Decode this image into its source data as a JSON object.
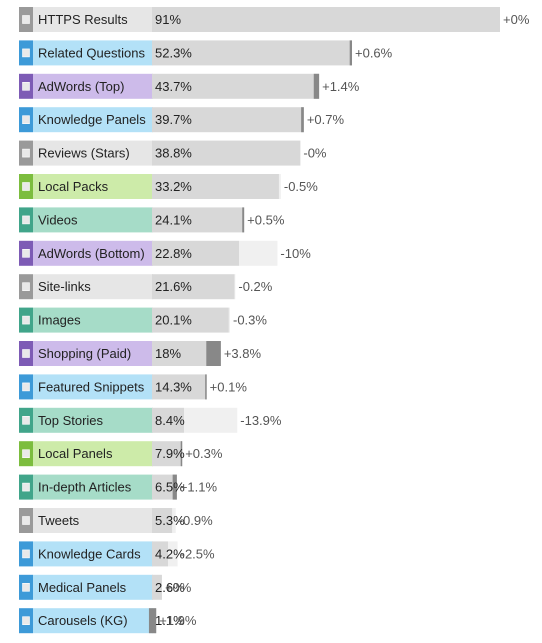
{
  "chart_data": {
    "type": "bar",
    "orientation": "horizontal",
    "title": "",
    "xlabel": "",
    "ylabel": "",
    "xlim": [
      0,
      100
    ],
    "categories": [
      "HTTPS Results",
      "Related Questions",
      "AdWords (Top)",
      "Knowledge Panels",
      "Reviews (Stars)",
      "Local Packs",
      "Videos",
      "AdWords (Bottom)",
      "Site-links",
      "Images",
      "Shopping (Paid)",
      "Featured Snippets",
      "Top Stories",
      "Local Panels",
      "In-depth Articles",
      "Tweets",
      "Knowledge Cards",
      "Medical Panels",
      "Carousels (KG)"
    ],
    "values": [
      91,
      52.3,
      43.7,
      39.7,
      38.8,
      33.2,
      24.1,
      22.8,
      21.6,
      20.1,
      18,
      14.3,
      8.4,
      7.9,
      6.5,
      5.3,
      4.2,
      2.6,
      1.1
    ],
    "value_labels": [
      "91%",
      "52.3%",
      "43.7%",
      "39.7%",
      "38.8%",
      "33.2%",
      "24.1%",
      "22.8%",
      "21.6%",
      "20.1%",
      "18%",
      "14.3%",
      "8.4%",
      "7.9%",
      "6.5%",
      "5.3%",
      "4.2%",
      "2.6%",
      "1.1%"
    ],
    "changes": [
      0,
      0.6,
      1.4,
      0.7,
      0,
      -0.5,
      0.5,
      -10,
      -0.2,
      -0.3,
      3.8,
      0.1,
      -13.9,
      0.3,
      1.1,
      -0.9,
      -2.5,
      0,
      1.9
    ],
    "change_labels": [
      "+0%",
      "+0.6%",
      "+1.4%",
      "+0.7%",
      "-0%",
      "-0.5%",
      "+0.5%",
      "-10%",
      "-0.2%",
      "-0.3%",
      "+3.8%",
      "+0.1%",
      "-13.9%",
      "+0.3%",
      "+1.1%",
      "-0.9%",
      "-2.5%",
      "+0%",
      "+1.9%"
    ],
    "groups": [
      "gray",
      "blue",
      "purple",
      "blue",
      "gray",
      "green",
      "teal",
      "purple",
      "gray",
      "teal",
      "purple",
      "blue",
      "teal",
      "green",
      "teal",
      "gray",
      "blue",
      "blue",
      "blue"
    ],
    "colors": {
      "gray": {
        "marker": "#9a9a9a",
        "fill": "#e6e6e6"
      },
      "blue": {
        "marker": "#3d9ad8",
        "fill": "#b3e1f7"
      },
      "purple": {
        "marker": "#7d5bb5",
        "fill": "#cdbbea"
      },
      "green": {
        "marker": "#7cbd3e",
        "fill": "#cdeba9"
      },
      "teal": {
        "marker": "#41a58a",
        "fill": "#a6dcc8"
      }
    },
    "bar_color": "#d8d8d8",
    "change_marker_color": "#888888",
    "grid": false,
    "legend": "none"
  }
}
